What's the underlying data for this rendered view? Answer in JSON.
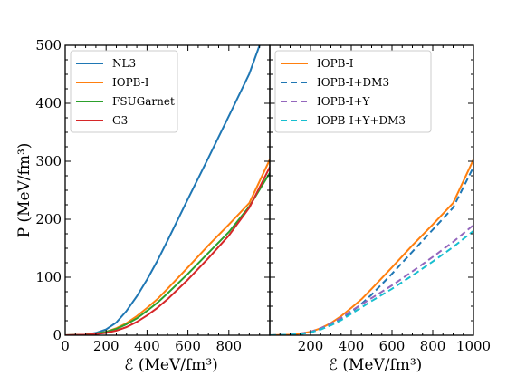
{
  "chart_data": [
    {
      "type": "line",
      "xlabel": "ℰ (MeV/fm³)",
      "ylabel": "P (MeV/fm³)",
      "xlim": [
        0,
        1000
      ],
      "ylim": [
        0,
        500
      ],
      "xticks": [
        "0",
        "200",
        "400",
        "600",
        "800"
      ],
      "yticks": [
        "0",
        "100",
        "200",
        "300",
        "400",
        "500"
      ],
      "grid": false,
      "legend_position": "top-left",
      "series": [
        {
          "name": "NL3",
          "color": "#1f77b4",
          "style": "solid",
          "x": [
            0,
            100,
            150,
            200,
            250,
            300,
            350,
            400,
            450,
            500,
            600,
            700,
            800,
            900,
            950
          ],
          "y": [
            0,
            1,
            4,
            10,
            22,
            42,
            67,
            96,
            128,
            163,
            235,
            306,
            378,
            451,
            500
          ]
        },
        {
          "name": "IOPB-I",
          "color": "#ff7f0e",
          "style": "solid",
          "x": [
            0,
            100,
            150,
            200,
            250,
            300,
            350,
            400,
            450,
            500,
            600,
            700,
            800,
            900,
            1000
          ],
          "y": [
            0,
            1,
            3,
            6,
            12,
            21,
            33,
            47,
            62,
            80,
            117,
            155,
            191,
            228,
            303
          ]
        },
        {
          "name": "FSUGarnet",
          "color": "#2ca02c",
          "style": "solid",
          "x": [
            0,
            100,
            150,
            200,
            250,
            300,
            350,
            400,
            450,
            500,
            600,
            700,
            800,
            900,
            1000
          ],
          "y": [
            0,
            1,
            3,
            6,
            11,
            19,
            29,
            42,
            56,
            72,
            106,
            142,
            178,
            222,
            280
          ]
        },
        {
          "name": "G3",
          "color": "#d62728",
          "style": "solid",
          "x": [
            0,
            100,
            150,
            200,
            250,
            300,
            350,
            400,
            450,
            500,
            600,
            700,
            800,
            900,
            1000
          ],
          "y": [
            0,
            1,
            2,
            4,
            8,
            14,
            23,
            34,
            47,
            62,
            96,
            133,
            172,
            220,
            290
          ]
        }
      ]
    },
    {
      "type": "line",
      "xlabel": "ℰ (MeV/fm³)",
      "ylabel": "",
      "xlim": [
        0,
        1000
      ],
      "ylim": [
        0,
        500
      ],
      "xticks": [
        "200",
        "400",
        "600",
        "800",
        "1000"
      ],
      "grid": false,
      "legend_position": "top-left",
      "series": [
        {
          "name": "IOPB-I",
          "color": "#ff7f0e",
          "style": "solid",
          "x": [
            0,
            100,
            150,
            200,
            250,
            300,
            350,
            400,
            450,
            500,
            600,
            700,
            800,
            900,
            1000
          ],
          "y": [
            0,
            1,
            3,
            6,
            12,
            21,
            33,
            47,
            62,
            80,
            117,
            155,
            191,
            228,
            303
          ]
        },
        {
          "name": "IOPB-I+DM3",
          "color": "#1f77b4",
          "style": "dashed",
          "x": [
            0,
            100,
            150,
            200,
            250,
            300,
            350,
            400,
            450,
            500,
            600,
            700,
            800,
            900,
            1000
          ],
          "y": [
            0,
            1,
            2,
            5,
            10,
            18,
            28,
            40,
            54,
            70,
            106,
            144,
            182,
            220,
            290
          ]
        },
        {
          "name": "IOPB-I+Y",
          "color": "#9467bd",
          "style": "dashed",
          "x": [
            0,
            100,
            150,
            200,
            250,
            300,
            350,
            400,
            450,
            500,
            600,
            700,
            800,
            900,
            1000
          ],
          "y": [
            0,
            1,
            3,
            6,
            12,
            20,
            30,
            42,
            53,
            64,
            86,
            110,
            135,
            161,
            190
          ]
        },
        {
          "name": "IOPB-I+Y+DM3",
          "color": "#17becf",
          "style": "dashed",
          "x": [
            0,
            100,
            150,
            200,
            250,
            300,
            350,
            400,
            450,
            500,
            600,
            700,
            800,
            900,
            1000
          ],
          "y": [
            0,
            1,
            2,
            5,
            10,
            17,
            26,
            37,
            48,
            59,
            80,
            103,
            127,
            152,
            180
          ]
        }
      ]
    }
  ]
}
